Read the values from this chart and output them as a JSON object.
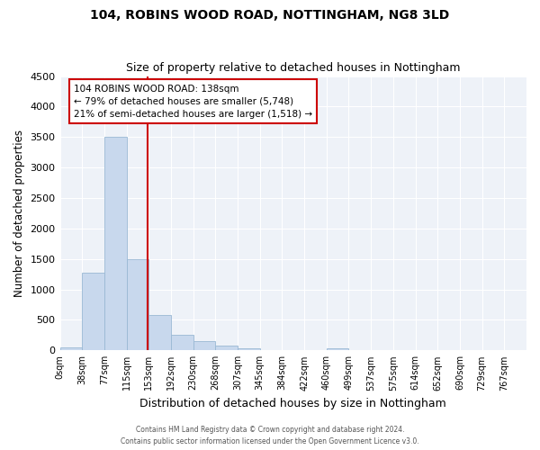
{
  "title1": "104, ROBINS WOOD ROAD, NOTTINGHAM, NG8 3LD",
  "title2": "Size of property relative to detached houses in Nottingham",
  "xlabel": "Distribution of detached houses by size in Nottingham",
  "ylabel": "Number of detached properties",
  "bar_color": "#c8d8ed",
  "bar_edge_color": "#9ab8d4",
  "bin_labels": [
    "0sqm",
    "38sqm",
    "77sqm",
    "115sqm",
    "153sqm",
    "192sqm",
    "230sqm",
    "268sqm",
    "307sqm",
    "345sqm",
    "384sqm",
    "422sqm",
    "460sqm",
    "499sqm",
    "537sqm",
    "575sqm",
    "614sqm",
    "652sqm",
    "690sqm",
    "729sqm",
    "767sqm"
  ],
  "bar_heights": [
    50,
    1280,
    3500,
    1500,
    580,
    250,
    150,
    80,
    30,
    5,
    3,
    0,
    35,
    0,
    0,
    0,
    0,
    0,
    0,
    0,
    0
  ],
  "vline_x_bin": 3.947,
  "property_line_label": "104 ROBINS WOOD ROAD: 138sqm",
  "annotation_line1": "← 79% of detached houses are smaller (5,748)",
  "annotation_line2": "21% of semi-detached houses are larger (1,518) →",
  "vline_color": "#cc0000",
  "annotation_box_color": "#ffffff",
  "annotation_box_edge": "#cc0000",
  "ylim": [
    0,
    4500
  ],
  "yticks": [
    0,
    500,
    1000,
    1500,
    2000,
    2500,
    3000,
    3500,
    4000,
    4500
  ],
  "bg_color": "#eef2f8",
  "footer1": "Contains HM Land Registry data © Crown copyright and database right 2024.",
  "footer2": "Contains public sector information licensed under the Open Government Licence v3.0."
}
